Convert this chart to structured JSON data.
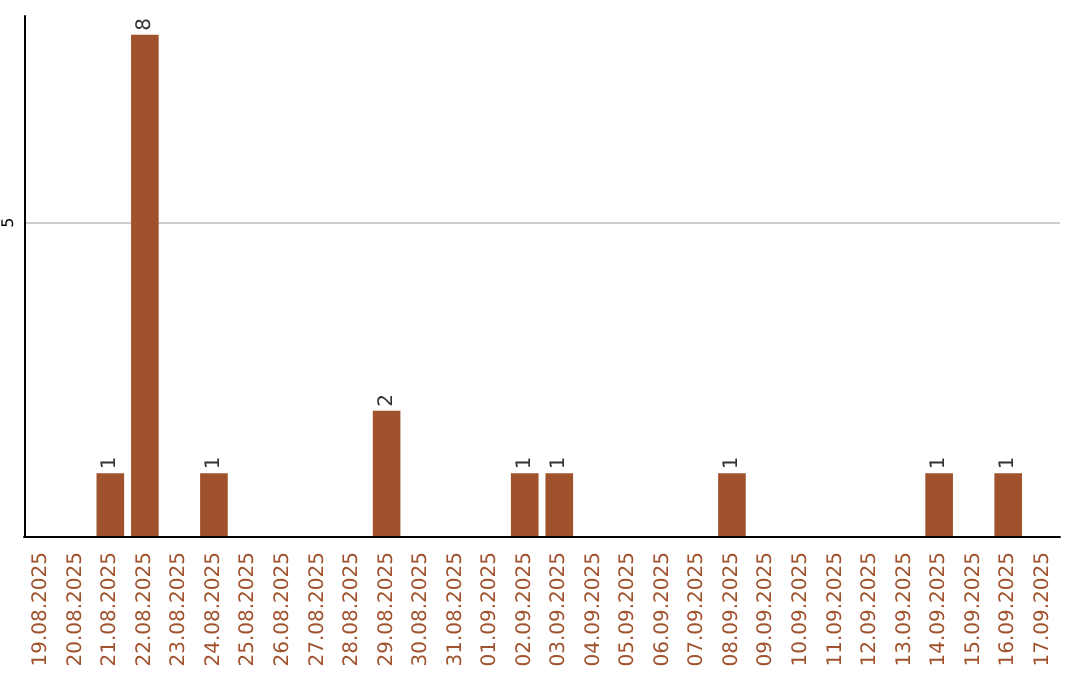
{
  "chart_data": {
    "type": "bar",
    "categories": [
      "19.08.2025",
      "20.08.2025",
      "21.08.2025",
      "22.08.2025",
      "23.08.2025",
      "24.08.2025",
      "25.08.2025",
      "26.08.2025",
      "27.08.2025",
      "28.08.2025",
      "29.08.2025",
      "30.08.2025",
      "31.08.2025",
      "01.09.2025",
      "02.09.2025",
      "03.09.2025",
      "04.09.2025",
      "05.09.2025",
      "06.09.2025",
      "07.09.2025",
      "08.09.2025",
      "09.09.2025",
      "10.09.2025",
      "11.09.2025",
      "12.09.2025",
      "13.09.2025",
      "14.09.2025",
      "15.09.2025",
      "16.09.2025",
      "17.09.2025"
    ],
    "values": [
      0,
      0,
      1,
      8,
      0,
      1,
      0,
      0,
      0,
      0,
      2,
      0,
      0,
      0,
      1,
      1,
      0,
      0,
      0,
      0,
      1,
      0,
      0,
      0,
      0,
      0,
      1,
      0,
      1,
      0
    ],
    "value_labels": [
      null,
      null,
      "1",
      "8",
      null,
      "1",
      null,
      null,
      null,
      null,
      "2",
      null,
      null,
      null,
      "1",
      "1",
      null,
      null,
      null,
      null,
      "1",
      null,
      null,
      null,
      null,
      null,
      "1",
      null,
      "1",
      null
    ],
    "color": "#a0522d",
    "ylim": [
      0,
      8.3
    ],
    "yticks": [
      5
    ],
    "grid": "y"
  }
}
